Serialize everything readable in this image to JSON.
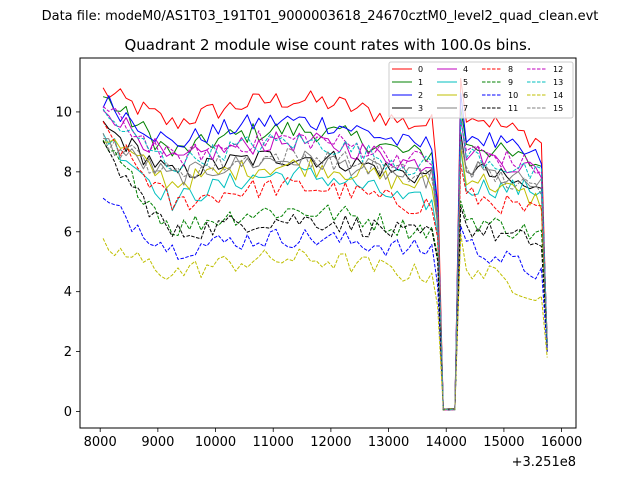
{
  "figure": {
    "suptitle": "Data file: modeM0/AS1T03_191T01_9000003618_24670cztM0_level2_quad_clean.evt",
    "x_offset_label": "+3.251e8"
  },
  "chart_data": {
    "type": "line",
    "title": "Quadrant 2 module wise count rates with 100.0s bins.",
    "xlabel": "",
    "ylabel": "",
    "x_offset": 325100000,
    "xlim": [
      7650,
      16250
    ],
    "ylim": [
      -0.55,
      11.8
    ],
    "xticks": [
      8000,
      9000,
      10000,
      11000,
      12000,
      13000,
      14000,
      15000,
      16000
    ],
    "yticks": [
      0,
      2,
      4,
      6,
      8,
      10
    ],
    "grid": false,
    "legend_position": "top-right",
    "legend_columns": 4,
    "x_start": 8050,
    "x_step": 100,
    "n_points": 78,
    "dip_start_index": 59,
    "dip_points": [
      [
        0.05,
        0.05
      ],
      [
        0.05,
        0.03
      ],
      [
        0.05,
        0.05
      ]
    ],
    "series": [
      {
        "name": "0",
        "color": "#ff0000",
        "dashed": false,
        "base": 9.6,
        "start": 10.7,
        "end": 9.0,
        "last": 2.0,
        "hump": 0.8
      },
      {
        "name": "1",
        "color": "#008000",
        "dashed": false,
        "base": 8.6,
        "start": 10.5,
        "end": 8.2,
        "last": 2.3,
        "hump": 0.8
      },
      {
        "name": "2",
        "color": "#0000ff",
        "dashed": false,
        "base": 8.9,
        "start": 10.4,
        "end": 8.4,
        "last": 2.1,
        "hump": 0.8
      },
      {
        "name": "3",
        "color": "#000000",
        "dashed": false,
        "base": 7.9,
        "start": 9.5,
        "end": 7.3,
        "last": 2.3,
        "hump": 0.6
      },
      {
        "name": "4",
        "color": "#bf00bf",
        "dashed": false,
        "base": 8.3,
        "start": 10.2,
        "end": 8.0,
        "last": 2.2,
        "hump": 0.7
      },
      {
        "name": "5",
        "color": "#00bfbf",
        "dashed": false,
        "base": 7.0,
        "start": 9.3,
        "end": 7.4,
        "last": 2.0,
        "hump": 0.9
      },
      {
        "name": "6",
        "color": "#bfbf00",
        "dashed": false,
        "base": 7.6,
        "start": 9.2,
        "end": 7.0,
        "last": 2.0,
        "hump": 0.6
      },
      {
        "name": "7",
        "color": "#808080",
        "dashed": false,
        "base": 7.8,
        "start": 9.0,
        "end": 7.5,
        "last": 2.2,
        "hump": 0.6
      },
      {
        "name": "8",
        "color": "#ff0000",
        "dashed": true,
        "base": 6.9,
        "start": 9.4,
        "end": 6.6,
        "last": 2.4,
        "hump": 0.6
      },
      {
        "name": "9",
        "color": "#008000",
        "dashed": true,
        "base": 6.1,
        "start": 8.9,
        "end": 5.9,
        "last": 2.2,
        "hump": 0.6
      },
      {
        "name": "10",
        "color": "#0000ff",
        "dashed": true,
        "base": 5.4,
        "start": 7.0,
        "end": 4.6,
        "last": 2.0,
        "hump": 0.4
      },
      {
        "name": "11",
        "color": "#000000",
        "dashed": true,
        "base": 5.9,
        "start": 8.7,
        "end": 5.6,
        "last": 2.3,
        "hump": 0.5
      },
      {
        "name": "12",
        "color": "#bf00bf",
        "dashed": true,
        "base": 8.4,
        "start": 10.1,
        "end": 8.1,
        "last": 2.4,
        "hump": 0.7
      },
      {
        "name": "13",
        "color": "#00bfbf",
        "dashed": true,
        "base": 8.2,
        "start": 9.9,
        "end": 7.8,
        "last": 2.3,
        "hump": 0.8
      },
      {
        "name": "14",
        "color": "#bfbf00",
        "dashed": true,
        "base": 4.6,
        "start": 5.5,
        "end": 3.9,
        "last": 1.8,
        "hump": 0.5
      },
      {
        "name": "15",
        "color": "#808080",
        "dashed": true,
        "base": 7.9,
        "start": 9.1,
        "end": 7.3,
        "last": 2.3,
        "hump": 0.6
      }
    ]
  }
}
